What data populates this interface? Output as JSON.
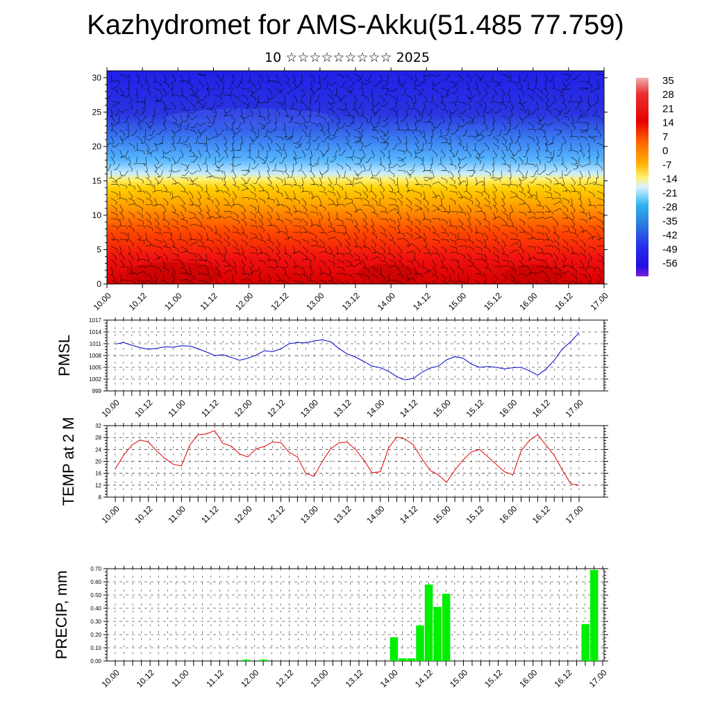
{
  "title": "Kazhydromet for AMS-Akku(51.485 77.759)",
  "subtitle": "10 ☆☆☆☆☆☆☆☆☆ 2025",
  "time_ticks": [
    "10.00",
    "10.12",
    "11.00",
    "11.12",
    "12.00",
    "12.12",
    "13.00",
    "13.12",
    "14.00",
    "14.12",
    "15.00",
    "15.12",
    "16.00",
    "16.12",
    "17.00"
  ],
  "colors": {
    "pmsl_line": "#0000cc",
    "temp_line": "#e00000",
    "precip_bar": "#00ee00"
  },
  "chart_data": [
    {
      "type": "heatmap",
      "name": "cross-section",
      "yticks": [
        "0",
        "5",
        "10",
        "15",
        "20",
        "25",
        "30"
      ],
      "ylim": [
        0,
        31
      ],
      "x": [
        "10.00",
        "10.12",
        "11.00",
        "11.12",
        "12.00",
        "12.12",
        "13.00",
        "13.12",
        "14.00",
        "14.12",
        "15.00",
        "15.12",
        "16.00",
        "16.12",
        "17.00"
      ],
      "colorbar": {
        "labels": [
          "35",
          "28",
          "21",
          "14",
          "7",
          "0",
          "-7",
          "-14",
          "-21",
          "-28",
          "-35",
          "-42",
          "-49",
          "-56"
        ]
      },
      "overlay": "wind barbs"
    },
    {
      "type": "line",
      "name": "PMSL",
      "ylabel": "PMSL",
      "ylim": [
        999,
        1017
      ],
      "yticks": [
        "1017",
        "1014",
        "1011",
        "1008",
        "1005",
        "1002",
        "999"
      ],
      "series": [
        {
          "values": [
            1010.9,
            1011.3,
            1010.6,
            1010.0,
            1009.6,
            1009.8,
            1010.2,
            1010.1,
            1010.5,
            1010.4,
            1009.7,
            1008.9,
            1008.0,
            1008.2,
            1007.5,
            1006.8,
            1007.3,
            1008.1,
            1009.2,
            1009.0,
            1009.7,
            1011.0,
            1011.3,
            1011.2,
            1011.7,
            1012.0,
            1011.5,
            1009.8,
            1008.4,
            1007.6,
            1006.5,
            1005.3,
            1004.9,
            1004.0,
            1002.6,
            1001.8,
            1002.2,
            1003.7,
            1004.8,
            1005.3,
            1006.9,
            1007.7,
            1007.3,
            1005.8,
            1005.0,
            1005.2,
            1005.0,
            1004.6,
            1004.9,
            1005.0,
            1004.1,
            1003.0,
            1004.5,
            1006.8,
            1009.7,
            1011.5,
            1013.8
          ]
        }
      ]
    },
    {
      "type": "line",
      "name": "TEMP at 2 M",
      "ylabel": "TEMP at 2 M",
      "ylim": [
        8,
        32
      ],
      "yticks": [
        "32",
        "28",
        "24",
        "20",
        "16",
        "12",
        "8"
      ],
      "series": [
        {
          "values": [
            17.5,
            22.0,
            25.5,
            27.2,
            26.5,
            23.5,
            21.0,
            19.0,
            18.5,
            25.5,
            29.0,
            29.2,
            30.3,
            26.0,
            25.2,
            22.5,
            21.5,
            24.2,
            25.0,
            26.5,
            26.3,
            23.0,
            21.5,
            16.0,
            15.0,
            20.0,
            24.2,
            26.2,
            26.5,
            24.0,
            20.5,
            16.2,
            16.5,
            24.5,
            28.2,
            27.5,
            25.5,
            21.0,
            17.0,
            15.5,
            13.0,
            17.0,
            20.5,
            23.2,
            24.0,
            21.5,
            19.0,
            16.5,
            15.5,
            23.5,
            27.0,
            29.0,
            25.5,
            22.0,
            17.0,
            12.5,
            12.0
          ]
        }
      ]
    },
    {
      "type": "bar",
      "name": "PRECIP",
      "ylabel": "PRECIP, mm",
      "ylim": [
        0,
        0.7
      ],
      "yticks": [
        "0.70",
        "0.60",
        "0.50",
        "0.40",
        "0.30",
        "0.20",
        "0.10",
        "0.00"
      ],
      "bars": [
        {
          "time_index": 15,
          "value": 0.01
        },
        {
          "time_index": 17,
          "value": 0.01
        },
        {
          "time_index": 32,
          "value": 0.18
        },
        {
          "time_index": 33,
          "value": 0.02
        },
        {
          "time_index": 34,
          "value": 0.02
        },
        {
          "time_index": 35,
          "value": 0.27
        },
        {
          "time_index": 36,
          "value": 0.58
        },
        {
          "time_index": 37,
          "value": 0.41
        },
        {
          "time_index": 38,
          "value": 0.51
        },
        {
          "time_index": 54,
          "value": 0.28
        },
        {
          "time_index": 55,
          "value": 0.69
        }
      ]
    }
  ]
}
